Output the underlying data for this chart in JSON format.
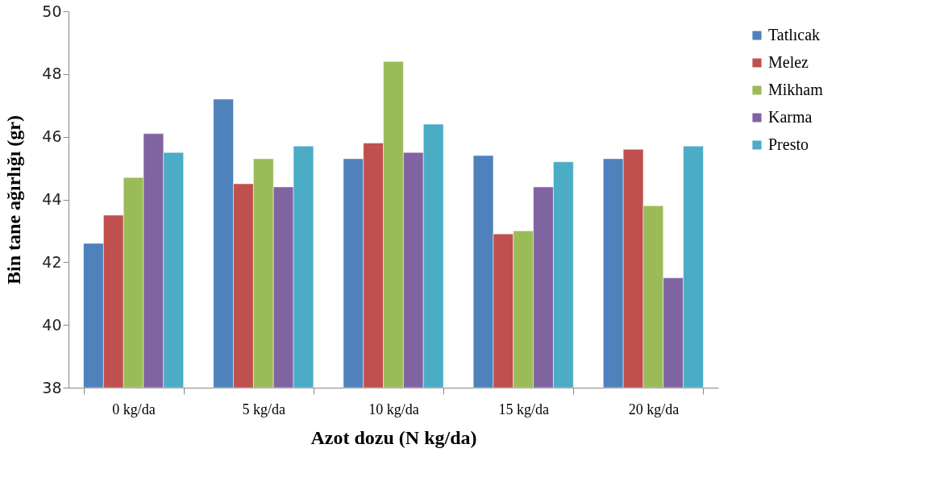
{
  "chart_data": {
    "type": "bar",
    "xlabel": "Azot dozu (N kg/da)",
    "ylabel": "Bin tane ağırlığı (gr)",
    "categories": [
      "0 kg/da",
      "5 kg/da",
      "10 kg/da",
      "15 kg/da",
      "20 kg/da"
    ],
    "series": [
      {
        "name": "Tatlıcak",
        "color": "#4f81bd",
        "values": [
          42.6,
          47.2,
          45.3,
          45.4,
          45.3
        ]
      },
      {
        "name": "Melez",
        "color": "#c0504d",
        "values": [
          43.5,
          44.5,
          45.8,
          42.9,
          45.6
        ]
      },
      {
        "name": "Mikham",
        "color": "#9bbb59",
        "values": [
          44.7,
          45.3,
          48.4,
          43.0,
          43.8
        ]
      },
      {
        "name": "Karma",
        "color": "#8064a2",
        "values": [
          46.1,
          44.4,
          45.5,
          44.4,
          41.5
        ]
      },
      {
        "name": "Presto",
        "color": "#4bacc6",
        "values": [
          45.5,
          45.7,
          46.4,
          45.2,
          45.7
        ]
      }
    ],
    "ylim": [
      38,
      50
    ],
    "yticks": [
      38,
      40,
      42,
      44,
      46,
      48,
      50
    ],
    "grid": false,
    "legend": "right"
  }
}
